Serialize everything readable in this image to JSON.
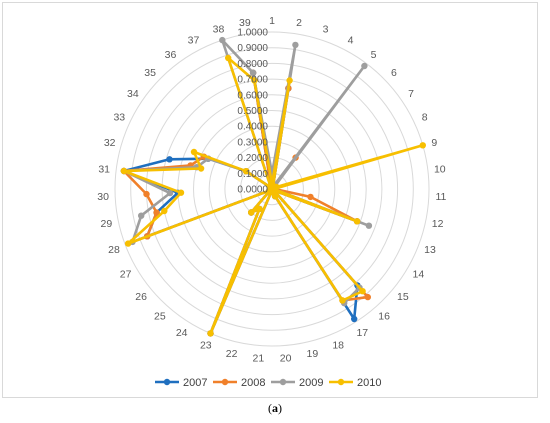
{
  "caption": {
    "prefix": "(",
    "letter": "a",
    "suffix": ")"
  },
  "chart_data": {
    "type": "radar",
    "categories": [
      "1",
      "2",
      "3",
      "4",
      "5",
      "6",
      "7",
      "8",
      "9",
      "10",
      "11",
      "12",
      "13",
      "14",
      "15",
      "16",
      "17",
      "18",
      "19",
      "20",
      "21",
      "22",
      "23",
      "24",
      "25",
      "26",
      "27",
      "28",
      "29",
      "30",
      "31",
      "32",
      "33",
      "34",
      "35",
      "36",
      "37",
      "38",
      "39"
    ],
    "ticks": [
      "0.0000",
      "0.1000",
      "0.2000",
      "0.3000",
      "0.4000",
      "0.5000",
      "0.6000",
      "0.7000",
      "0.8000",
      "0.9000",
      "1.0000"
    ],
    "rlim": [
      0,
      1
    ],
    "grid": true,
    "legend": "bottom",
    "series": [
      {
        "name": "2007",
        "color": "#1f6fbf",
        "values": [
          0.07,
          0.65,
          0.02,
          0.02,
          0.02,
          0.02,
          0.02,
          0.03,
          0.02,
          0.02,
          0.02,
          0.02,
          0.58,
          0.02,
          0.02,
          0.82,
          0.98,
          0.05,
          0.02,
          0.02,
          0.02,
          0.02,
          1.0,
          0.15,
          0.2,
          0.02,
          0.02,
          0.85,
          0.75,
          0.6,
          0.95,
          0.68,
          0.45,
          0.2,
          0.02,
          0.02,
          0.02,
          0.02,
          0.75
        ]
      },
      {
        "name": "2008",
        "color": "#f0802a",
        "values": [
          0.07,
          0.65,
          0.02,
          0.02,
          0.25,
          0.02,
          0.02,
          0.03,
          0.02,
          0.02,
          0.02,
          0.25,
          0.58,
          0.02,
          0.02,
          0.92,
          0.84,
          0.05,
          0.02,
          0.02,
          0.02,
          0.02,
          1.0,
          0.15,
          0.2,
          0.02,
          0.02,
          0.85,
          0.75,
          0.8,
          0.95,
          0.54,
          0.48,
          0.2,
          0.02,
          0.02,
          0.02,
          0.02,
          0.75
        ]
      },
      {
        "name": "2009",
        "color": "#9e9e9e",
        "values": [
          0.1,
          0.93,
          0.02,
          0.02,
          0.98,
          0.02,
          0.02,
          0.03,
          0.02,
          0.02,
          0.02,
          0.02,
          0.66,
          0.02,
          0.02,
          0.84,
          0.86,
          0.05,
          0.02,
          0.02,
          0.02,
          0.02,
          1.0,
          0.15,
          0.2,
          0.02,
          0.02,
          0.95,
          0.85,
          0.65,
          0.95,
          0.5,
          0.45,
          0.2,
          0.02,
          0.02,
          0.02,
          1.0,
          0.75
        ]
      },
      {
        "name": "2010",
        "color": "#f7bf00",
        "values": [
          0.03,
          0.7,
          0.02,
          0.02,
          0.02,
          0.02,
          0.02,
          0.03,
          1.0,
          0.02,
          0.02,
          0.02,
          0.58,
          0.02,
          0.02,
          0.87,
          0.84,
          0.05,
          0.02,
          0.02,
          0.02,
          0.02,
          1.0,
          0.15,
          0.2,
          0.02,
          0.02,
          0.98,
          0.7,
          0.58,
          0.95,
          0.47,
          0.55,
          0.2,
          0.02,
          0.02,
          0.02,
          0.88,
          0.7
        ]
      }
    ]
  }
}
